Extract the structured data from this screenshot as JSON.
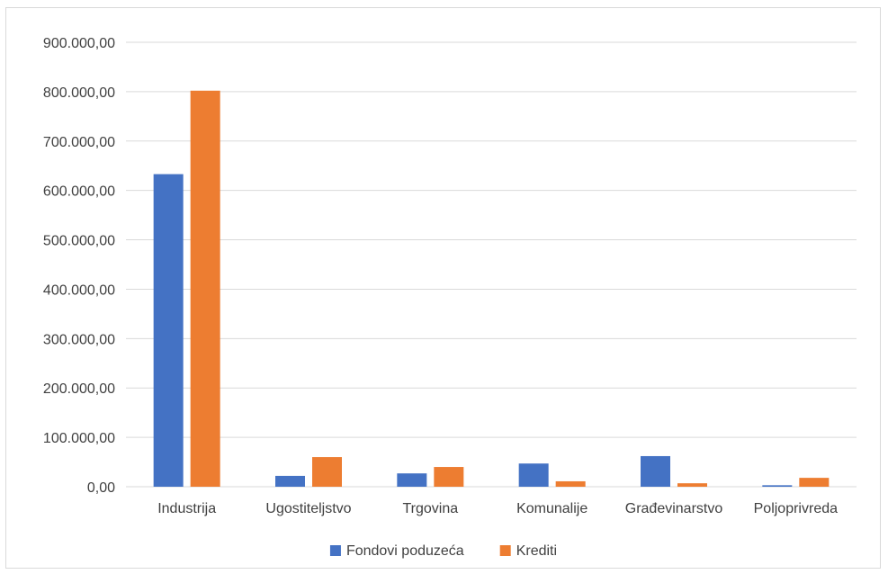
{
  "chart_data": {
    "type": "bar",
    "title": "",
    "xlabel": "",
    "ylabel": "",
    "ylim": [
      0,
      900000
    ],
    "yticks": [
      0,
      100000,
      200000,
      300000,
      400000,
      500000,
      600000,
      700000,
      800000,
      900000
    ],
    "ytick_labels": [
      "0,00",
      "100.000,00",
      "200.000,00",
      "300.000,00",
      "400.000,00",
      "500.000,00",
      "600.000,00",
      "700.000,00",
      "800.000,00",
      "900.000,00"
    ],
    "categories": [
      "Industrija",
      "Ugostiteljstvo",
      "Trgovina",
      "Komunalije",
      "Građevinarstvo",
      "Poljoprivreda"
    ],
    "series": [
      {
        "name": "Fondovi poduzeća",
        "color": "#4472C4",
        "values": [
          633000,
          22000,
          27000,
          47000,
          62000,
          3000
        ]
      },
      {
        "name": "Krediti",
        "color": "#ED7D31",
        "values": [
          802000,
          60000,
          40000,
          11000,
          7000,
          18000
        ]
      }
    ],
    "grid": true,
    "legend": "bottom"
  }
}
